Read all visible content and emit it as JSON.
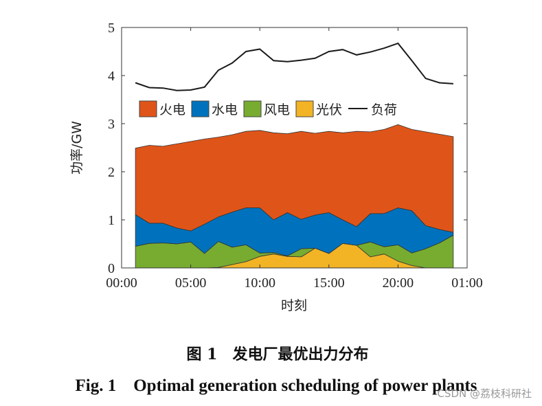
{
  "chart_data": {
    "type": "area",
    "stacked": true,
    "xlabel": "时刻",
    "ylabel": "功率/GW",
    "ylim": [
      0,
      5
    ],
    "xlim_hours": [
      0,
      25
    ],
    "yticks": [
      "0",
      "1",
      "2",
      "3",
      "4",
      "5"
    ],
    "xticks": [
      {
        "hour": 0,
        "label": "00:00"
      },
      {
        "hour": 5,
        "label": "05:00"
      },
      {
        "hour": 10,
        "label": "10:00"
      },
      {
        "hour": 15,
        "label": "15:00"
      },
      {
        "hour": 20,
        "label": "20:00"
      },
      {
        "hour": 25,
        "label": "01:00"
      }
    ],
    "hours": [
      1,
      2,
      3,
      4,
      5,
      6,
      7,
      8,
      9,
      10,
      11,
      12,
      13,
      14,
      15,
      16,
      17,
      18,
      19,
      20,
      21,
      22,
      23,
      24
    ],
    "legend_placement": "upper-left inside",
    "series": [
      {
        "name": "光伏",
        "color": "#F2B425",
        "values": [
          0,
          0,
          0,
          0,
          0,
          0,
          0.01,
          0.07,
          0.13,
          0.24,
          0.29,
          0.24,
          0.23,
          0.41,
          0.3,
          0.51,
          0.47,
          0.23,
          0.29,
          0.14,
          0.05,
          0,
          0,
          0
        ]
      },
      {
        "name": "风电",
        "color": "#77AC30",
        "values": [
          0.45,
          0.51,
          0.52,
          0.5,
          0.54,
          0.3,
          0.54,
          0.36,
          0.35,
          0.07,
          0.03,
          0.01,
          0.17,
          0,
          0,
          0,
          0,
          0.31,
          0.15,
          0.34,
          0.26,
          0.4,
          0.52,
          0.68
        ]
      },
      {
        "name": "水电",
        "color": "#0072BD",
        "values": [
          0.66,
          0.42,
          0.41,
          0.33,
          0.23,
          0.61,
          0.51,
          0.73,
          0.77,
          0.94,
          0.68,
          0.9,
          0.61,
          0.69,
          0.85,
          0.49,
          0.39,
          0.59,
          0.69,
          0.77,
          0.88,
          0.48,
          0.28,
          0.06
        ]
      },
      {
        "name": "火电",
        "color": "#DF5519",
        "values": [
          1.38,
          1.62,
          1.6,
          1.75,
          1.86,
          1.77,
          1.66,
          1.61,
          1.59,
          1.61,
          1.81,
          1.64,
          1.83,
          1.7,
          1.69,
          1.81,
          1.98,
          1.7,
          1.75,
          1.73,
          1.69,
          1.95,
          1.98,
          1.99
        ]
      }
    ],
    "line": {
      "name": "负荷",
      "color": "#1a1a1a",
      "values": [
        3.85,
        3.75,
        3.74,
        3.69,
        3.7,
        3.76,
        4.11,
        4.26,
        4.5,
        4.55,
        4.31,
        4.29,
        4.32,
        4.36,
        4.5,
        4.54,
        4.43,
        4.49,
        4.57,
        4.67,
        4.31,
        3.94,
        3.85,
        3.83
      ]
    },
    "legend_order": [
      "火电",
      "水电",
      "风电",
      "光伏",
      "负荷"
    ]
  },
  "caption": {
    "cn": "图 1　发电厂最优出力分布",
    "en": "Fig. 1    Optimal generation scheduling of power plants"
  },
  "watermark": "CSDN @荔枝科研社"
}
